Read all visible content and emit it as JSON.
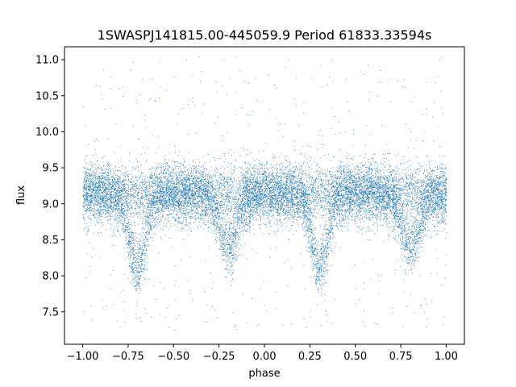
{
  "chart_data": {
    "type": "scatter",
    "title": "1SWASPJ141815.00-445059.9 Period 61833.33594s",
    "xlabel": "phase",
    "ylabel": "flux",
    "xlim": [
      -1.1,
      1.1
    ],
    "ylim": [
      7.05,
      11.18
    ],
    "xticks": [
      "−1.00",
      "−0.75",
      "−0.50",
      "−0.25",
      "0.00",
      "0.25",
      "0.50",
      "0.75",
      "1.00"
    ],
    "yticks": [
      "7.5",
      "8.0",
      "8.5",
      "9.0",
      "9.5",
      "10.0",
      "10.5",
      "11.0"
    ],
    "grid": false,
    "point_color": "#1f77b4",
    "series": [
      {
        "baseline_flux": 9.15,
        "primary_eclipse": {
          "phases": [
            -0.7,
            0.3
          ],
          "min_flux": 8.1
        },
        "secondary_eclipse": {
          "phases": [
            -0.2,
            0.8
          ],
          "min_flux": 8.4
        },
        "phase_range": [
          -1.0,
          1.0
        ]
      }
    ]
  }
}
